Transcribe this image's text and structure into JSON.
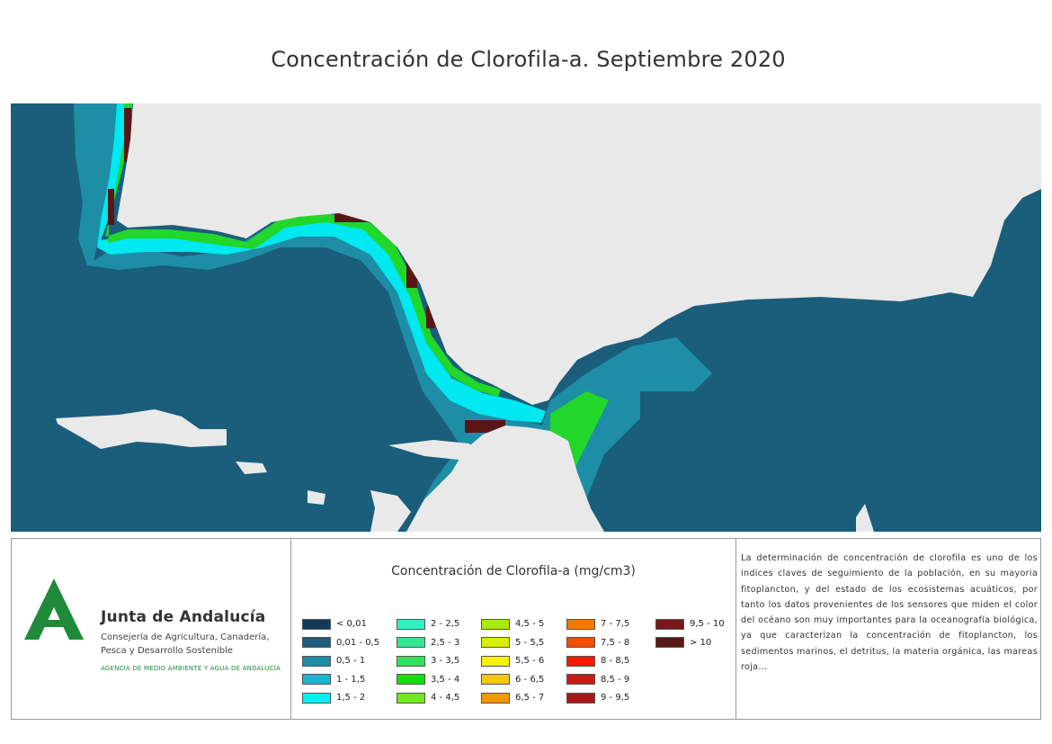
{
  "title": "Concentración de Clorofila-a. Septiembre 2020",
  "map": {
    "colors": {
      "ocean": "#1a5e7c",
      "land": "#e9e9e9",
      "shelf": "#1d8ea6",
      "coastal_cyan": "#00e8f0",
      "high_green": "#22d62a",
      "high_yellow": "#f2f200",
      "high_orange": "#f07a00",
      "high_red": "#c81818",
      "max_brown": "#5a1616"
    }
  },
  "organization": {
    "name": "Junta de Andalucía",
    "department_line1": "Consejería de Agricultura, Canadería,",
    "department_line2": "Pesca y Desarrollo Sostenible",
    "agency": "AGENCIA DE MEDIO AMBIENTE Y AGUA DE ANDALUCÍA",
    "logo_color": "#1f8a3a"
  },
  "legend": {
    "title": "Concentración de Clorofila-a (mg/cm3)",
    "items": [
      {
        "label": "< 0,01",
        "color": "#143a5a"
      },
      {
        "label": "0,01 - 0,5",
        "color": "#1b5d7a"
      },
      {
        "label": "0,5 - 1",
        "color": "#1d8ea6"
      },
      {
        "label": "1 - 1,5",
        "color": "#15b8cc"
      },
      {
        "label": "1,5 - 2",
        "color": "#00f0f4"
      },
      {
        "label": "2 - 2,5",
        "color": "#33f0c0"
      },
      {
        "label": "2,5 - 3",
        "color": "#33e890"
      },
      {
        "label": "3 - 3,5",
        "color": "#33e060"
      },
      {
        "label": "3,5 - 4",
        "color": "#10e010"
      },
      {
        "label": "4 - 4,5",
        "color": "#70e820"
      },
      {
        "label": "4,5 - 5",
        "color": "#a8ea10"
      },
      {
        "label": "5 - 5,5",
        "color": "#d8f000"
      },
      {
        "label": "5,5 - 6",
        "color": "#f4f400"
      },
      {
        "label": "6 - 6,5",
        "color": "#f4c800"
      },
      {
        "label": "6,5 - 7",
        "color": "#f49800"
      },
      {
        "label": "7 - 7,5",
        "color": "#f47800"
      },
      {
        "label": "7,5 - 8",
        "color": "#f44c00"
      },
      {
        "label": "8 - 8,5",
        "color": "#f41c00"
      },
      {
        "label": "8,5 - 9",
        "color": "#d01818"
      },
      {
        "label": "9 - 9,5",
        "color": "#a81818"
      },
      {
        "label": "9,5 - 10",
        "color": "#7a1818"
      },
      {
        "label": "> 10",
        "color": "#5a1818"
      }
    ]
  },
  "description": "La determinación de concentración de clorofila es uno de los indices claves de seguimiento de la población, en su mayoria fitoplancton, y del estado de los ecosistemas acuáticos, por tanto los datos provenientes de los sensores que miden el color del océano son muy importantes para la oceanografía biológica, ya que caracterizan la concentración de fitoplancton, los sedimentos marinos, el detritus, la materia orgánica, las mareas roja..."
}
